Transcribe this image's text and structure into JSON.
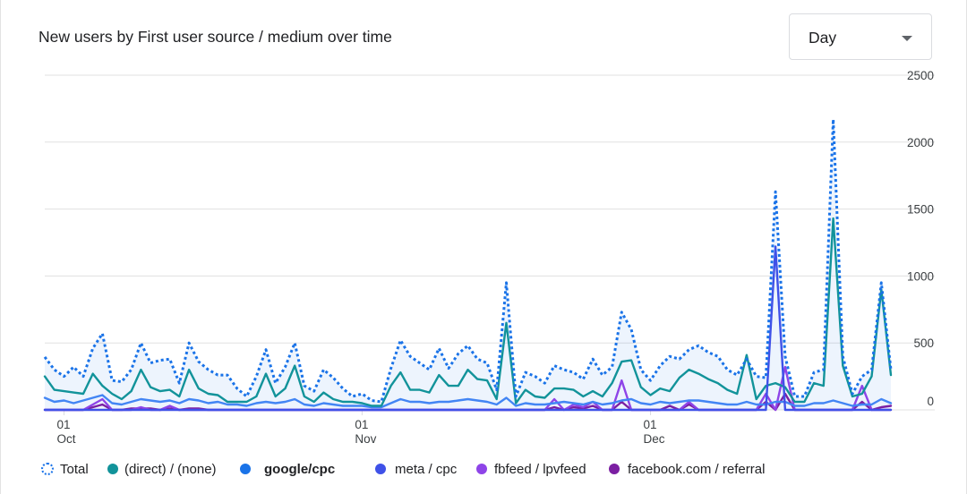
{
  "header": {
    "title": "New users by First user source / medium over time",
    "dropdown": {
      "selected": "Day"
    }
  },
  "chart_data": {
    "type": "line",
    "title": "New users by First user source / medium over time",
    "xlabel": "",
    "ylabel": "",
    "ylim": [
      0,
      2500
    ],
    "y_ticks": [
      "2500",
      "2000",
      "1500",
      "1000",
      "500",
      "0"
    ],
    "x_tick_labels": [
      {
        "day": "01",
        "month": "Oct"
      },
      {
        "day": "01",
        "month": "Nov"
      },
      {
        "day": "01",
        "month": "Dec"
      }
    ],
    "grid": true,
    "legend_position": "bottom",
    "x_start": "2023-09-29",
    "series": [
      {
        "name": "Total",
        "color": "#1a73e8",
        "style": "dotted",
        "values": [
          395,
          300,
          250,
          320,
          250,
          460,
          570,
          220,
          210,
          300,
          500,
          350,
          370,
          380,
          200,
          500,
          360,
          300,
          260,
          260,
          160,
          100,
          250,
          450,
          200,
          320,
          500,
          180,
          140,
          300,
          240,
          160,
          100,
          120,
          70,
          60,
          310,
          520,
          400,
          350,
          300,
          460,
          310,
          420,
          480,
          380,
          350,
          150,
          950,
          100,
          280,
          250,
          200,
          330,
          300,
          280,
          230,
          380,
          260,
          320,
          730,
          600,
          300,
          220,
          330,
          400,
          380,
          450,
          480,
          430,
          400,
          300,
          260,
          380,
          250,
          240,
          1630,
          400,
          100,
          100,
          280,
          300,
          2170,
          400,
          120,
          250,
          300,
          950,
          300
        ]
      },
      {
        "name": "(direct) / (none)",
        "color": "#12939a",
        "style": "solid",
        "values": [
          250,
          150,
          140,
          130,
          120,
          270,
          180,
          120,
          80,
          140,
          300,
          170,
          140,
          150,
          100,
          300,
          160,
          120,
          110,
          60,
          60,
          60,
          100,
          270,
          100,
          160,
          330,
          100,
          60,
          130,
          80,
          60,
          60,
          50,
          30,
          30,
          180,
          280,
          150,
          150,
          130,
          260,
          180,
          180,
          300,
          230,
          220,
          80,
          650,
          50,
          150,
          100,
          90,
          160,
          160,
          150,
          100,
          140,
          100,
          200,
          360,
          370,
          170,
          110,
          160,
          140,
          240,
          300,
          270,
          230,
          200,
          150,
          120,
          410,
          80,
          180,
          200,
          170,
          60,
          60,
          200,
          180,
          1430,
          330,
          100,
          120,
          250,
          900,
          260
        ]
      },
      {
        "name": "google/cpc",
        "color": "#4285f4",
        "style": "solid",
        "values": [
          90,
          60,
          70,
          50,
          70,
          90,
          110,
          50,
          40,
          60,
          80,
          70,
          60,
          70,
          50,
          80,
          70,
          50,
          60,
          40,
          40,
          30,
          50,
          60,
          50,
          60,
          80,
          40,
          30,
          50,
          40,
          30,
          30,
          30,
          20,
          20,
          50,
          80,
          60,
          60,
          50,
          60,
          60,
          70,
          80,
          70,
          60,
          40,
          90,
          30,
          50,
          40,
          40,
          50,
          60,
          50,
          40,
          60,
          40,
          50,
          70,
          80,
          50,
          40,
          60,
          50,
          60,
          70,
          70,
          60,
          50,
          40,
          40,
          60,
          40,
          40,
          60,
          60,
          30,
          30,
          50,
          50,
          70,
          50,
          30,
          40,
          40,
          80,
          50
        ]
      },
      {
        "name": "meta / cpc",
        "color": "#3f51e8",
        "style": "solid",
        "values": [
          0,
          0,
          0,
          0,
          0,
          0,
          0,
          0,
          0,
          0,
          0,
          0,
          0,
          0,
          0,
          0,
          0,
          0,
          0,
          0,
          0,
          0,
          0,
          0,
          0,
          0,
          0,
          0,
          0,
          0,
          0,
          0,
          0,
          0,
          0,
          0,
          0,
          0,
          0,
          0,
          0,
          0,
          0,
          0,
          0,
          0,
          0,
          0,
          0,
          0,
          0,
          0,
          0,
          0,
          0,
          0,
          0,
          0,
          0,
          0,
          0,
          0,
          0,
          0,
          0,
          0,
          0,
          0,
          0,
          0,
          0,
          0,
          0,
          0,
          0,
          0,
          1220,
          0,
          0,
          0,
          0,
          0,
          0,
          0,
          0,
          0,
          0,
          0,
          0
        ]
      },
      {
        "name": "fbfeed / lpvfeed",
        "color": "#8e44e8",
        "style": "solid",
        "values": [
          0,
          0,
          0,
          0,
          0,
          40,
          80,
          0,
          0,
          0,
          20,
          0,
          0,
          30,
          0,
          0,
          0,
          0,
          0,
          0,
          0,
          0,
          0,
          0,
          0,
          0,
          0,
          0,
          0,
          0,
          0,
          0,
          0,
          0,
          0,
          0,
          0,
          0,
          0,
          0,
          0,
          0,
          0,
          0,
          0,
          0,
          0,
          0,
          0,
          0,
          0,
          0,
          0,
          80,
          0,
          40,
          20,
          60,
          0,
          0,
          220,
          0,
          0,
          0,
          0,
          0,
          0,
          60,
          0,
          0,
          0,
          0,
          0,
          0,
          0,
          120,
          0,
          320,
          0,
          0,
          0,
          0,
          0,
          0,
          0,
          180,
          0,
          0,
          0
        ]
      },
      {
        "name": "facebook.com / referral",
        "color": "#7b1fa2",
        "style": "solid",
        "values": [
          0,
          0,
          0,
          0,
          0,
          20,
          40,
          0,
          0,
          10,
          10,
          10,
          0,
          10,
          0,
          10,
          10,
          0,
          0,
          0,
          0,
          0,
          0,
          0,
          0,
          0,
          0,
          0,
          0,
          0,
          0,
          0,
          0,
          0,
          0,
          0,
          0,
          0,
          0,
          0,
          0,
          0,
          0,
          0,
          0,
          0,
          0,
          0,
          0,
          0,
          0,
          0,
          0,
          20,
          0,
          20,
          10,
          30,
          0,
          0,
          60,
          0,
          0,
          0,
          0,
          30,
          0,
          40,
          0,
          0,
          0,
          0,
          0,
          0,
          0,
          60,
          0,
          120,
          0,
          0,
          0,
          0,
          0,
          0,
          0,
          60,
          0,
          20,
          30
        ]
      }
    ]
  },
  "legend": {
    "items": [
      {
        "label": "Total",
        "color": "#1a73e8",
        "style": "dotted"
      },
      {
        "label": "(direct) / (none)",
        "color": "#12939a"
      },
      {
        "label": "google/cpc",
        "color": "#4285f4"
      },
      {
        "label": "meta / cpc",
        "color": "#3f51e8"
      },
      {
        "label": "fbfeed / lpvfeed",
        "color": "#8e44e8"
      },
      {
        "label": "facebook.com / referral",
        "color": "#7b1fa2"
      }
    ]
  }
}
